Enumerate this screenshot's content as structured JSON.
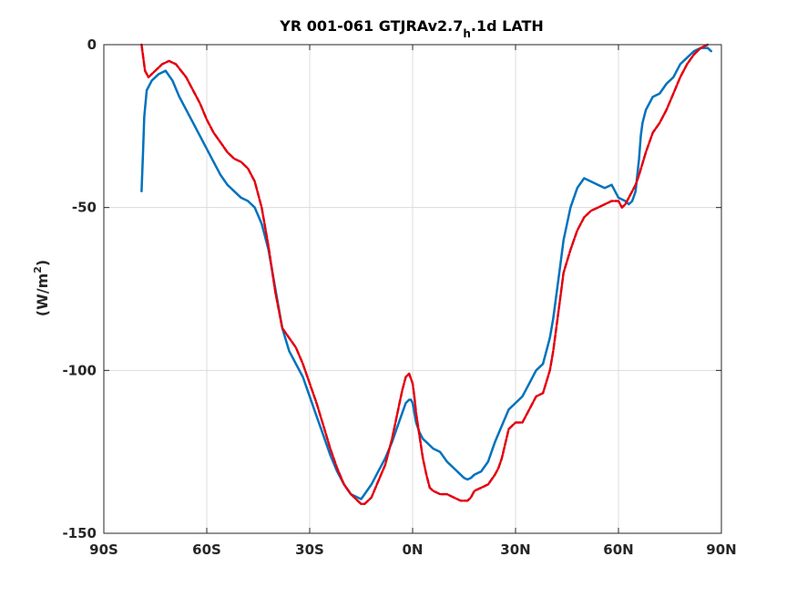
{
  "chart_data": {
    "type": "line",
    "title": {
      "main": "YR 001-061 GTJRAv2.7",
      "subscript": "h",
      "suffix": ".1d LATH"
    },
    "xlabel": "",
    "ylabel": {
      "main": "(W/m",
      "superscript": "2",
      "suffix": ")"
    },
    "xlim": [
      -90,
      90
    ],
    "ylim": [
      -150,
      0
    ],
    "grid": true,
    "x_ticks": [
      {
        "value": -90,
        "label": "90S"
      },
      {
        "value": -60,
        "label": "60S"
      },
      {
        "value": -30,
        "label": "30S"
      },
      {
        "value": 0,
        "label": "0N"
      },
      {
        "value": 30,
        "label": "30N"
      },
      {
        "value": 60,
        "label": "60N"
      },
      {
        "value": 90,
        "label": "90N"
      }
    ],
    "y_ticks": [
      {
        "value": 0,
        "label": "0"
      },
      {
        "value": -50,
        "label": "-50"
      },
      {
        "value": -100,
        "label": "-100"
      },
      {
        "value": -150,
        "label": "-150"
      }
    ],
    "series": [
      {
        "color": "#0072BD",
        "style": "solid",
        "x": [
          -79,
          -78.6,
          -78.2,
          -77.5,
          -76,
          -74,
          -72,
          -70,
          -68,
          -65,
          -62,
          -60,
          -58,
          -56,
          -54,
          -52,
          -50,
          -48,
          -46,
          -44,
          -42,
          -40,
          -38,
          -36,
          -34,
          -32,
          -30,
          -28,
          -26,
          -24,
          -22,
          -20,
          -18,
          -16,
          -15,
          -14,
          -12,
          -10,
          -8,
          -6,
          -4,
          -3,
          -2,
          -1,
          -0.5,
          0,
          0.5,
          1,
          2,
          3,
          4,
          5,
          6,
          8,
          10,
          12,
          14,
          15,
          16,
          17,
          18,
          20,
          22,
          23,
          24,
          26,
          28,
          30,
          32,
          34,
          36,
          38,
          40,
          41,
          42,
          43,
          44,
          46,
          48,
          50,
          52,
          54,
          56,
          58,
          60,
          62,
          63,
          64,
          65,
          66,
          66.5,
          67,
          68,
          70,
          72,
          74,
          76,
          78,
          80,
          82,
          84,
          86,
          87
        ],
        "y": [
          -45,
          -34,
          -22,
          -14,
          -11,
          -9,
          -8,
          -11,
          -16,
          -22,
          -28,
          -32,
          -36,
          -40,
          -43,
          -45,
          -47,
          -48,
          -50,
          -55,
          -63,
          -75,
          -87,
          -94,
          -98,
          -102,
          -108,
          -114,
          -120,
          -126,
          -131,
          -135,
          -138,
          -139,
          -139.5,
          -138,
          -135,
          -131,
          -127,
          -122,
          -116,
          -113,
          -110,
          -109,
          -109,
          -110,
          -113,
          -116,
          -119,
          -121,
          -122,
          -123,
          -124,
          -125,
          -128,
          -130,
          -132,
          -133,
          -133.5,
          -133,
          -132,
          -131,
          -128,
          -125,
          -122,
          -117,
          -112,
          -110,
          -108,
          -104,
          -100,
          -98,
          -90,
          -84,
          -76,
          -68,
          -60,
          -50,
          -44,
          -41,
          -42,
          -43,
          -44,
          -43,
          -47,
          -48,
          -49,
          -48,
          -45,
          -35,
          -28,
          -24,
          -20,
          -16,
          -15,
          -12,
          -10,
          -6,
          -4,
          -2,
          -1,
          -1,
          -2
        ]
      },
      {
        "color": "#E3000F",
        "style": "dashed",
        "x": [
          -79,
          -78.5,
          -78,
          -77,
          -75,
          -73,
          -71,
          -69,
          -66,
          -64,
          -62,
          -60,
          -58,
          -56,
          -54,
          -52,
          -50,
          -48,
          -46,
          -44,
          -42,
          -40,
          -38,
          -36,
          -34,
          -32,
          -30,
          -28,
          -26,
          -24,
          -22,
          -20,
          -18,
          -16,
          -15,
          -14,
          -12,
          -10,
          -8,
          -6,
          -4,
          -3,
          -2,
          -1,
          0,
          0.5,
          1,
          2,
          3,
          4,
          5,
          6,
          8,
          10,
          12,
          14,
          15,
          16,
          17,
          18,
          20,
          22,
          24,
          25,
          26,
          28,
          30,
          32,
          34,
          36,
          38,
          40,
          41,
          42,
          43,
          44,
          46,
          48,
          50,
          52,
          54,
          56,
          58,
          60,
          61,
          62,
          63,
          64,
          65,
          66,
          68,
          70,
          72,
          74,
          76,
          78,
          80,
          82,
          84,
          85,
          86
        ],
        "y": [
          0,
          -4,
          -8,
          -10,
          -8,
          -6,
          -5,
          -6,
          -10,
          -14,
          -18,
          -23,
          -27,
          -30,
          -33,
          -35,
          -36,
          -38,
          -42,
          -50,
          -62,
          -76,
          -87,
          -90,
          -93,
          -98,
          -104,
          -110,
          -117,
          -124,
          -130,
          -135,
          -138,
          -140,
          -141,
          -141,
          -139,
          -134,
          -129,
          -121,
          -111,
          -106,
          -102,
          -101,
          -104,
          -108,
          -113,
          -120,
          -127,
          -132,
          -136,
          -137,
          -138,
          -138,
          -139,
          -140,
          -140,
          -140,
          -139,
          -137,
          -136,
          -135,
          -132,
          -130,
          -127,
          -118,
          -116,
          -116,
          -112,
          -108,
          -107,
          -100,
          -94,
          -86,
          -78,
          -70,
          -63,
          -57,
          -53,
          -51,
          -50,
          -49,
          -48,
          -48,
          -50,
          -49,
          -47,
          -45,
          -43,
          -40,
          -33,
          -27,
          -24,
          -20,
          -15,
          -10,
          -6,
          -3,
          -1,
          -0.5,
          0
        ]
      }
    ]
  }
}
